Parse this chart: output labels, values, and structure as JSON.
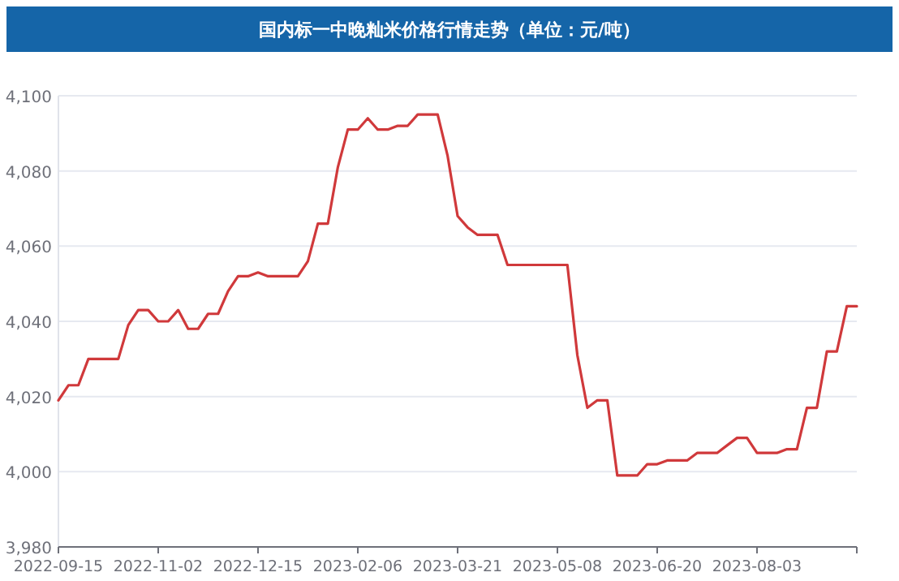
{
  "chart_data": {
    "type": "line",
    "title": "国内标一中晚籼米价格行情走势（单位：元/吨）",
    "categories": [
      "2022-09-15",
      null,
      null,
      null,
      null,
      null,
      null,
      null,
      null,
      null,
      "2022-11-02",
      null,
      null,
      null,
      null,
      null,
      null,
      null,
      null,
      null,
      "2022-12-15",
      null,
      null,
      null,
      null,
      null,
      null,
      null,
      null,
      null,
      "2023-02-06",
      null,
      null,
      null,
      null,
      null,
      null,
      null,
      null,
      null,
      "2023-03-21",
      null,
      null,
      null,
      null,
      null,
      null,
      null,
      null,
      null,
      "2023-05-08",
      null,
      null,
      null,
      null,
      null,
      null,
      null,
      null,
      null,
      "2023-06-20",
      null,
      null,
      null,
      null,
      null,
      null,
      null,
      null,
      null,
      "2023-08-03",
      null,
      null,
      null,
      null,
      null,
      null,
      null,
      null,
      null,
      null
    ],
    "series": [
      {
        "color": "#d0393b",
        "values": [
          4019,
          4023,
          4023,
          4030,
          4030,
          4030,
          4030,
          4039,
          4043,
          4043,
          4040,
          4040,
          4043,
          4038,
          4038,
          4042,
          4042,
          4048,
          4052,
          4052,
          4053,
          4052,
          4052,
          4052,
          4052,
          4056,
          4066,
          4066,
          4081,
          4091,
          4091,
          4094,
          4091,
          4091,
          4092,
          4092,
          4095,
          4095,
          4095,
          4084,
          4068,
          4065,
          4063,
          4063,
          4063,
          4055,
          4055,
          4055,
          4055,
          4055,
          4055,
          4055,
          4031,
          4017,
          4019,
          4019,
          3999,
          3999,
          3999,
          4002,
          4002,
          4003,
          4003,
          4003,
          4005,
          4005,
          4005,
          4007,
          4009,
          4009,
          4005,
          4005,
          4005,
          4006,
          4006,
          4017,
          4017,
          4032,
          4032,
          4044,
          4044
        ]
      }
    ],
    "ylim": [
      3980,
      4100
    ],
    "yticks": [
      {
        "value": 3980,
        "label": "3,980"
      },
      {
        "value": 4000,
        "label": "4,000"
      },
      {
        "value": 4020,
        "label": "4,020"
      },
      {
        "value": 4040,
        "label": "4,040"
      },
      {
        "value": 4060,
        "label": "4,060"
      },
      {
        "value": 4080,
        "label": "4,080"
      },
      {
        "value": 4100,
        "label": "4,100"
      }
    ],
    "grid": "y",
    "line_style": "solid"
  }
}
